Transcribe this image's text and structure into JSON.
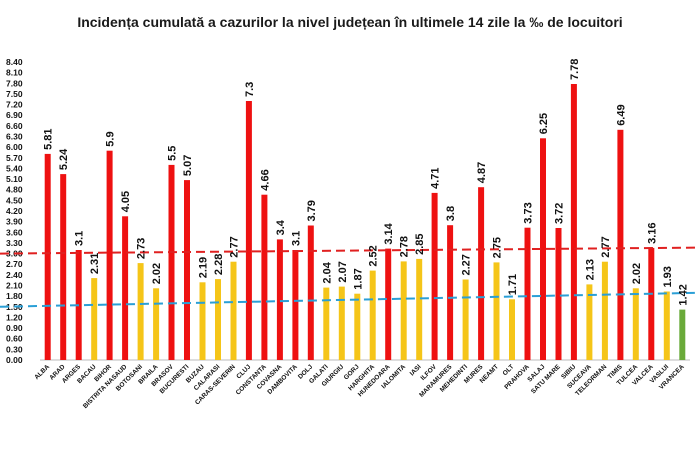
{
  "chart_data": {
    "type": "bar",
    "title": "Incidența cumulată a cazurilor la nivel județean în ultimele 14 zile la ‰ de locuitori",
    "xlabel": "",
    "ylabel": "",
    "ylim": [
      0,
      8.4
    ],
    "ytick_step": 0.3,
    "grid": false,
    "legend": "none",
    "categories": [
      "ALBA",
      "ARAD",
      "ARGES",
      "BACAU",
      "BIHOR",
      "BISTRITA NASAUD",
      "BOTOSANI",
      "BRAILA",
      "BRASOV",
      "BUCURESTI",
      "BUZAU",
      "CALARASI",
      "CARAS-SEVERIN",
      "CLUJ",
      "CONSTANTA",
      "COVASNA",
      "DAMBOVITA",
      "DOLJ",
      "GALATI",
      "GIURGIU",
      "GORJ",
      "HARGHITA",
      "HUNEDOARA",
      "IALOMITA",
      "IASI",
      "ILFOV",
      "MARAMURES",
      "MEHEDINTI",
      "MURES",
      "NEAMT",
      "OLT",
      "PRAHOVA",
      "SALAJ",
      "SATU MARE",
      "SIBIU",
      "SUCEAVA",
      "TELEORMAN",
      "TIMIS",
      "TULCEA",
      "VALCEA",
      "VASLUI",
      "VRANCEA"
    ],
    "values": [
      5.81,
      5.24,
      3.1,
      2.31,
      5.9,
      4.05,
      2.73,
      2.02,
      5.5,
      5.07,
      2.19,
      2.28,
      2.77,
      7.3,
      4.66,
      3.4,
      3.1,
      3.79,
      2.04,
      2.07,
      1.87,
      2.52,
      3.14,
      2.78,
      2.85,
      4.71,
      3.8,
      2.27,
      4.87,
      2.75,
      1.71,
      3.73,
      6.25,
      3.72,
      7.78,
      2.13,
      2.77,
      6.49,
      2.02,
      3.16,
      1.93,
      1.42
    ],
    "value_labels": [
      "5.81",
      "5.24",
      "3.1",
      "2.31",
      "5.9",
      "4.05",
      "2.73",
      "2.02",
      "5.5",
      "5.07",
      "2.19",
      "2.28",
      "2.77",
      "7.3",
      "4.66",
      "3.4",
      "3.1",
      "3.79",
      "2.04",
      "2.07",
      "1.87",
      "2.52",
      "3.14",
      "2.78",
      "2.85",
      "4.71",
      "3.8",
      "2.27",
      "4.87",
      "2.75",
      "1.71",
      "3.73",
      "6.25",
      "3.72",
      "7.78",
      "2.13",
      "2.77",
      "6.49",
      "2.02",
      "3.16",
      "1.93",
      "1.42"
    ],
    "thresholds": [
      {
        "value": 3.0,
        "style": "dashed",
        "color": "#e02020"
      },
      {
        "value": 1.5,
        "style": "dashed",
        "color": "#2a9fd6"
      }
    ],
    "colors": {
      "above_3": "#ee1111",
      "between_1_5_and_3": "#f5c518",
      "below_1_5": "#6aaa3a"
    }
  }
}
